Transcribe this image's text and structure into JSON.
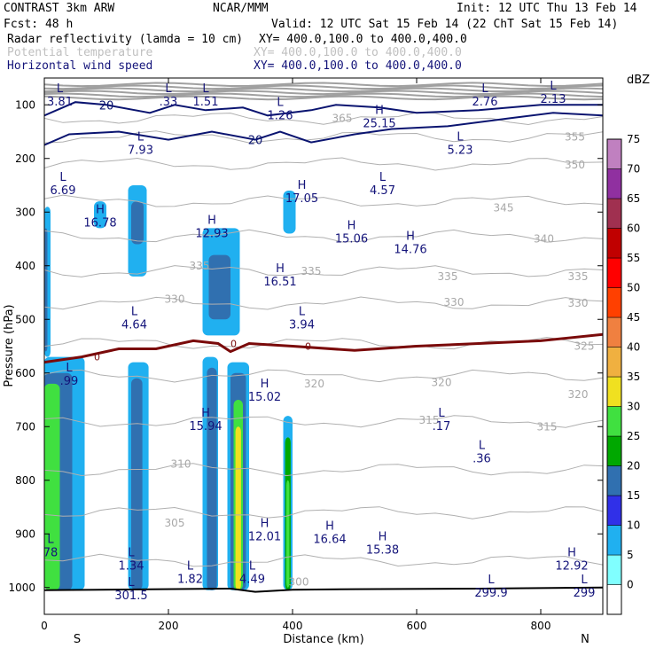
{
  "header": {
    "model": "CONTRAST  3km ARW",
    "center": "NCAR/MMM",
    "init": "Init: 12 UTC Thu 13 Feb 14",
    "fcst": "Fcst:   48 h",
    "valid": "Valid: 12 UTC Sat 15 Feb 14 (22 ChT Sat 15 Feb 14)"
  },
  "fields": [
    {
      "name": "Radar reflectivity (lamda = 10 cm)",
      "xy": "XY= 400.0,100.0 to 400.0,400.0",
      "color": "#000000"
    },
    {
      "name": "Potential temperature",
      "xy": "XY= 400.0,100.0 to 400.0,400.0",
      "color": "#c0c0c0"
    },
    {
      "name": "Horizontal wind speed",
      "xy": "XY= 400.0,100.0 to 400.0,400.0",
      "color": "#14147a"
    }
  ],
  "chart_data": {
    "type": "cross-section",
    "xlabel": "Distance (km)",
    "ylabel": "Pressure (hPa)",
    "x_ticks": [
      "0",
      "200",
      "400",
      "600",
      "800"
    ],
    "y_ticks": [
      "100",
      "200",
      "300",
      "400",
      "500",
      "600",
      "700",
      "800",
      "900",
      "1000"
    ],
    "xlim": [
      0,
      900
    ],
    "ylim_hPa": [
      50,
      1050
    ],
    "left_end_label": "S",
    "right_end_label": "N",
    "colorbar": {
      "unit": "dBZ",
      "levels": [
        "0",
        "5",
        "10",
        "15",
        "20",
        "25",
        "30",
        "35",
        "40",
        "45",
        "50",
        "55",
        "60",
        "65",
        "70",
        "75"
      ],
      "colors": [
        "#ffffff",
        "#80ffff",
        "#20b0f0",
        "#3030e8",
        "#3070b0",
        "#00a800",
        "#40e040",
        "#f0e020",
        "#f0b040",
        "#f08040",
        "#ff4000",
        "#ff0000",
        "#c00000",
        "#a03050",
        "#9030a0",
        "#c080c0"
      ]
    },
    "reflectivity_cells": [
      {
        "x": [
          0,
          10
        ],
        "p": [
          290,
          570
        ],
        "dbz": 10
      },
      {
        "x": [
          0,
          5
        ],
        "p": [
          330,
          560
        ],
        "dbz": 20
      },
      {
        "x": [
          0,
          65
        ],
        "p": [
          570,
          1005
        ],
        "dbz": 10
      },
      {
        "x": [
          0,
          45
        ],
        "p": [
          600,
          1005
        ],
        "dbz": 20
      },
      {
        "x": [
          0,
          25
        ],
        "p": [
          620,
          1005
        ],
        "dbz": 30
      },
      {
        "x": [
          80,
          100
        ],
        "p": [
          280,
          330
        ],
        "dbz": 10
      },
      {
        "x": [
          135,
          165
        ],
        "p": [
          250,
          420
        ],
        "dbz": 10
      },
      {
        "x": [
          140,
          160
        ],
        "p": [
          280,
          360
        ],
        "dbz": 20
      },
      {
        "x": [
          135,
          168
        ],
        "p": [
          580,
          1005
        ],
        "dbz": 10
      },
      {
        "x": [
          140,
          158
        ],
        "p": [
          610,
          1005
        ],
        "dbz": 20
      },
      {
        "x": [
          255,
          315
        ],
        "p": [
          330,
          530
        ],
        "dbz": 10
      },
      {
        "x": [
          265,
          300
        ],
        "p": [
          380,
          500
        ],
        "dbz": 20
      },
      {
        "x": [
          255,
          280
        ],
        "p": [
          570,
          1005
        ],
        "dbz": 10
      },
      {
        "x": [
          262,
          278
        ],
        "p": [
          590,
          1005
        ],
        "dbz": 20
      },
      {
        "x": [
          295,
          330
        ],
        "p": [
          580,
          1005
        ],
        "dbz": 10
      },
      {
        "x": [
          300,
          325
        ],
        "p": [
          600,
          1005
        ],
        "dbz": 20
      },
      {
        "x": [
          305,
          320
        ],
        "p": [
          650,
          1005
        ],
        "dbz": 30
      },
      {
        "x": [
          308,
          317
        ],
        "p": [
          700,
          1005
        ],
        "dbz": 35
      },
      {
        "x": [
          385,
          400
        ],
        "p": [
          680,
          1005
        ],
        "dbz": 10
      },
      {
        "x": [
          388,
          397
        ],
        "p": [
          720,
          1005
        ],
        "dbz": 25
      },
      {
        "x": [
          390,
          395
        ],
        "p": [
          800,
          1000
        ],
        "dbz": 30
      },
      {
        "x": [
          385,
          405
        ],
        "p": [
          260,
          340
        ],
        "dbz": 10
      }
    ],
    "theta_contours": [
      {
        "label": "365",
        "p": 125
      },
      {
        "label": "355",
        "p": 160
      },
      {
        "label": "350",
        "p": 210
      },
      {
        "label": "345",
        "p": 280
      },
      {
        "label": "340",
        "p": 345
      },
      {
        "label": "335",
        "p": 410
      },
      {
        "label": "330",
        "p": 470
      },
      {
        "label": "325",
        "p": 545
      },
      {
        "label": "320",
        "p": 605
      },
      {
        "label": "315",
        "p": 690
      },
      {
        "label": "310",
        "p": 780
      },
      {
        "label": "305",
        "p": 860
      },
      {
        "label": "300",
        "p": 950
      }
    ],
    "theta_labels": [
      {
        "text": "365",
        "x": 480,
        "p": 125
      },
      {
        "text": "355",
        "x": 855,
        "p": 160
      },
      {
        "text": "350",
        "x": 855,
        "p": 212
      },
      {
        "text": "345",
        "x": 740,
        "p": 292
      },
      {
        "text": "340",
        "x": 805,
        "p": 350
      },
      {
        "text": "335",
        "x": 250,
        "p": 400
      },
      {
        "text": "335",
        "x": 430,
        "p": 410
      },
      {
        "text": "335",
        "x": 650,
        "p": 420
      },
      {
        "text": "335",
        "x": 860,
        "p": 420
      },
      {
        "text": "330",
        "x": 210,
        "p": 462
      },
      {
        "text": "330",
        "x": 660,
        "p": 468
      },
      {
        "text": "330",
        "x": 860,
        "p": 470
      },
      {
        "text": "325",
        "x": 870,
        "p": 550
      },
      {
        "text": "320",
        "x": 435,
        "p": 620
      },
      {
        "text": "320",
        "x": 640,
        "p": 618
      },
      {
        "text": "320",
        "x": 860,
        "p": 640
      },
      {
        "text": "315",
        "x": 620,
        "p": 688
      },
      {
        "text": "315",
        "x": 810,
        "p": 700
      },
      {
        "text": "310",
        "x": 220,
        "p": 770
      },
      {
        "text": "305",
        "x": 210,
        "p": 880
      },
      {
        "text": "300",
        "x": 410,
        "p": 990
      }
    ],
    "wind_contours": [
      {
        "label": "20",
        "points": [
          [
            0,
            120
          ],
          [
            50,
            95
          ],
          [
            100,
            100
          ],
          [
            170,
            115
          ],
          [
            210,
            100
          ],
          [
            260,
            110
          ],
          [
            320,
            105
          ],
          [
            360,
            120
          ],
          [
            430,
            110
          ],
          [
            470,
            100
          ],
          [
            540,
            105
          ],
          [
            600,
            115
          ],
          [
            700,
            110
          ],
          [
            800,
            100
          ],
          [
            900,
            100
          ]
        ]
      },
      {
        "label": "20",
        "points": [
          [
            0,
            175
          ],
          [
            40,
            155
          ],
          [
            120,
            150
          ],
          [
            200,
            165
          ],
          [
            270,
            150
          ],
          [
            340,
            165
          ],
          [
            380,
            150
          ],
          [
            430,
            170
          ],
          [
            500,
            155
          ],
          [
            560,
            145
          ],
          [
            650,
            140
          ],
          [
            750,
            125
          ],
          [
            820,
            115
          ],
          [
            900,
            120
          ]
        ]
      }
    ],
    "freezing_level": {
      "label": "0",
      "points": [
        [
          0,
          580
        ],
        [
          60,
          570
        ],
        [
          120,
          555
        ],
        [
          180,
          555
        ],
        [
          240,
          540
        ],
        [
          280,
          545
        ],
        [
          300,
          560
        ],
        [
          330,
          545
        ],
        [
          400,
          550
        ],
        [
          500,
          558
        ],
        [
          600,
          550
        ],
        [
          700,
          545
        ],
        [
          800,
          540
        ],
        [
          900,
          528
        ]
      ]
    },
    "ground": {
      "points": [
        [
          0,
          1005
        ],
        [
          300,
          1002
        ],
        [
          340,
          1008
        ],
        [
          400,
          1004
        ],
        [
          500,
          1003
        ],
        [
          700,
          1002
        ],
        [
          900,
          1000
        ]
      ]
    },
    "annotations": [
      {
        "type": "L",
        "value": "3.81",
        "x": 25,
        "p": 90
      },
      {
        "type": "L",
        "value": ".33",
        "x": 200,
        "p": 90
      },
      {
        "type": "L",
        "value": "1.51",
        "x": 260,
        "p": 90
      },
      {
        "type": "L",
        "value": "1.26",
        "x": 380,
        "p": 115
      },
      {
        "type": "H",
        "value": "25.15",
        "x": 540,
        "p": 130
      },
      {
        "type": "L",
        "value": "2.76",
        "x": 710,
        "p": 90
      },
      {
        "type": "L",
        "value": "2.13",
        "x": 820,
        "p": 85
      },
      {
        "type": "L",
        "value": "7.93",
        "x": 155,
        "p": 180
      },
      {
        "type": "L",
        "value": "5.23",
        "x": 670,
        "p": 180
      },
      {
        "type": "L",
        "value": "6.69",
        "x": 30,
        "p": 255
      },
      {
        "type": "L",
        "value": "4.57",
        "x": 545,
        "p": 255
      },
      {
        "type": "H",
        "value": "17.05",
        "x": 415,
        "p": 270
      },
      {
        "type": "H",
        "value": "16.78",
        "x": 90,
        "p": 315
      },
      {
        "type": "H",
        "value": "12.93",
        "x": 270,
        "p": 335
      },
      {
        "type": "H",
        "value": "15.06",
        "x": 495,
        "p": 345
      },
      {
        "type": "H",
        "value": "14.76",
        "x": 590,
        "p": 365
      },
      {
        "type": "H",
        "value": "16.51",
        "x": 380,
        "p": 425
      },
      {
        "type": "L",
        "value": "4.64",
        "x": 145,
        "p": 505
      },
      {
        "type": "L",
        "value": "3.94",
        "x": 415,
        "p": 505
      },
      {
        "type": "L",
        "value": ".99",
        "x": 40,
        "p": 610
      },
      {
        "type": "H",
        "value": "15.02",
        "x": 355,
        "p": 640
      },
      {
        "type": "H",
        "value": "15.94",
        "x": 260,
        "p": 695
      },
      {
        "type": "L",
        "value": ".17",
        "x": 640,
        "p": 695
      },
      {
        "type": "L",
        "value": ".36",
        "x": 705,
        "p": 755
      },
      {
        "type": "H",
        "value": "12.01",
        "x": 355,
        "p": 900
      },
      {
        "type": "H",
        "value": "16.64",
        "x": 460,
        "p": 905
      },
      {
        "type": "H",
        "value": "15.38",
        "x": 545,
        "p": 925
      },
      {
        "type": "L",
        "value": "78",
        "x": 10,
        "p": 930
      },
      {
        "type": "L",
        "value": "1.34",
        "x": 140,
        "p": 955
      },
      {
        "type": "H",
        "value": "12.92",
        "x": 850,
        "p": 955
      },
      {
        "type": "L",
        "value": "1.82",
        "x": 235,
        "p": 980
      },
      {
        "type": "L",
        "value": "4.49",
        "x": 335,
        "p": 980
      },
      {
        "type": "L",
        "value": "299.9",
        "x": 720,
        "p": 1005
      },
      {
        "type": "L",
        "value": "299",
        "x": 870,
        "p": 1005
      },
      {
        "type": "L",
        "value": "301.5",
        "x": 140,
        "p": 1010
      }
    ]
  }
}
